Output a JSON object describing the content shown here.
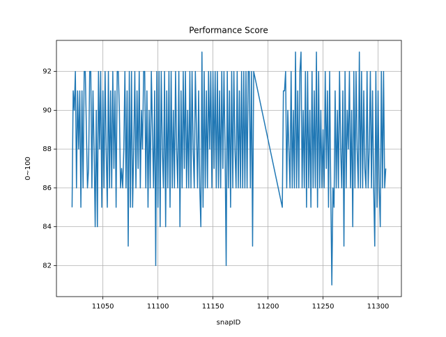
{
  "chart_data": {
    "type": "line",
    "title": "Performance Score",
    "x_label": "snapID",
    "y_label": "0~100",
    "x": [
      11022,
      11023,
      11024,
      11025,
      11026,
      11027,
      11028,
      11029,
      11030,
      11031,
      11032,
      11033,
      11034,
      11035,
      11036,
      11037,
      11038,
      11039,
      11040,
      11041,
      11042,
      11043,
      11044,
      11045,
      11046,
      11047,
      11048,
      11049,
      11050,
      11051,
      11052,
      11053,
      11054,
      11055,
      11056,
      11057,
      11058,
      11059,
      11060,
      11061,
      11062,
      11063,
      11064,
      11065,
      11066,
      11067,
      11068,
      11069,
      11070,
      11071,
      11072,
      11073,
      11074,
      11075,
      11076,
      11077,
      11078,
      11079,
      11080,
      11081,
      11082,
      11083,
      11084,
      11085,
      11086,
      11087,
      11088,
      11089,
      11090,
      11091,
      11092,
      11093,
      11094,
      11095,
      11096,
      11097,
      11098,
      11099,
      11100,
      11101,
      11102,
      11103,
      11104,
      11105,
      11106,
      11107,
      11108,
      11109,
      11110,
      11111,
      11112,
      11113,
      11114,
      11115,
      11116,
      11117,
      11118,
      11119,
      11120,
      11121,
      11122,
      11123,
      11124,
      11125,
      11126,
      11127,
      11128,
      11129,
      11130,
      11131,
      11132,
      11133,
      11134,
      11135,
      11136,
      11137,
      11138,
      11139,
      11140,
      11141,
      11142,
      11143,
      11144,
      11145,
      11146,
      11147,
      11148,
      11149,
      11150,
      11151,
      11152,
      11153,
      11154,
      11155,
      11156,
      11157,
      11158,
      11159,
      11160,
      11161,
      11162,
      11163,
      11164,
      11165,
      11166,
      11167,
      11168,
      11169,
      11170,
      11171,
      11172,
      11173,
      11174,
      11175,
      11176,
      11177,
      11178,
      11179,
      11180,
      11181,
      11182,
      11183,
      11184,
      11185,
      11186,
      11187,
      11213,
      11214,
      11215,
      11216,
      11217,
      11218,
      11219,
      11220,
      11221,
      11222,
      11223,
      11224,
      11225,
      11226,
      11227,
      11228,
      11229,
      11230,
      11231,
      11232,
      11233,
      11234,
      11235,
      11236,
      11237,
      11238,
      11239,
      11240,
      11241,
      11242,
      11243,
      11244,
      11245,
      11246,
      11247,
      11248,
      11249,
      11250,
      11251,
      11252,
      11253,
      11254,
      11255,
      11256,
      11257,
      11258,
      11259,
      11260,
      11261,
      11262,
      11263,
      11264,
      11265,
      11266,
      11267,
      11268,
      11269,
      11270,
      11271,
      11272,
      11273,
      11274,
      11275,
      11276,
      11277,
      11278,
      11279,
      11280,
      11281,
      11282,
      11283,
      11284,
      11285,
      11286,
      11287,
      11288,
      11289,
      11290,
      11291,
      11292,
      11293,
      11294,
      11295,
      11296,
      11297,
      11298,
      11299,
      11300,
      11301,
      11302,
      11303,
      11304,
      11305,
      11306,
      11307
    ],
    "series": [
      {
        "color": "#1f77b4",
        "values": [
          85,
          91,
          90,
          92,
          86,
          91,
          88,
          91,
          85,
          91,
          86,
          92,
          92,
          89,
          86,
          87,
          92,
          92,
          86,
          91,
          88,
          84,
          90,
          84,
          92,
          88,
          92,
          85,
          91,
          86,
          92,
          88,
          85,
          92,
          86,
          91,
          86,
          92,
          87,
          91,
          85,
          92,
          92,
          90,
          86,
          87,
          86,
          88,
          92,
          86,
          91,
          83,
          92,
          85,
          92,
          85,
          88,
          92,
          86,
          91,
          87,
          92,
          86,
          90,
          88,
          92,
          92,
          86,
          91,
          85,
          90,
          86,
          92,
          89,
          86,
          91,
          82,
          92,
          85,
          92,
          84,
          92,
          88,
          86,
          92,
          84,
          91,
          86,
          92,
          85,
          92,
          86,
          90,
          86,
          92,
          88,
          86,
          92,
          84,
          91,
          86,
          92,
          87,
          92,
          86,
          90,
          86,
          92,
          86,
          92,
          88,
          86,
          92,
          89,
          86,
          91,
          86,
          84,
          93,
          85,
          92,
          86,
          91,
          86,
          92,
          88,
          92,
          86,
          92,
          87,
          92,
          86,
          92,
          86,
          91,
          86,
          92,
          87,
          92,
          88,
          82,
          92,
          86,
          91,
          85,
          92,
          86,
          92,
          88,
          86,
          92,
          86,
          91,
          86,
          92,
          86,
          92,
          86,
          92,
          86,
          92,
          92,
          86,
          92,
          83,
          92,
          85,
          91,
          91,
          92,
          86,
          90,
          88,
          86,
          92,
          86,
          90,
          86,
          93,
          86,
          91,
          86,
          92,
          93,
          86,
          90,
          86,
          92,
          85,
          92,
          86,
          90,
          85,
          92,
          86,
          91,
          86,
          93,
          85,
          92,
          86,
          90,
          86,
          89,
          86,
          92,
          87,
          91,
          85,
          92,
          86,
          81,
          86,
          85,
          91,
          86,
          90,
          86,
          92,
          88,
          86,
          91,
          83,
          92,
          86,
          90,
          88,
          92,
          86,
          90,
          84,
          92,
          86,
          92,
          88,
          86,
          93,
          86,
          92,
          86,
          91,
          87,
          86,
          92,
          86,
          88,
          92,
          86,
          91,
          86,
          83,
          92,
          85,
          91,
          86,
          84,
          92,
          86,
          92,
          86,
          87
        ]
      }
    ],
    "xlim": [
      11007.8,
      11321.2
    ],
    "ylim": [
      80.4,
      93.6
    ],
    "xticks": [
      11050,
      11100,
      11150,
      11200,
      11250,
      11300
    ],
    "yticks": [
      82,
      84,
      86,
      88,
      90,
      92
    ],
    "grid": true
  }
}
